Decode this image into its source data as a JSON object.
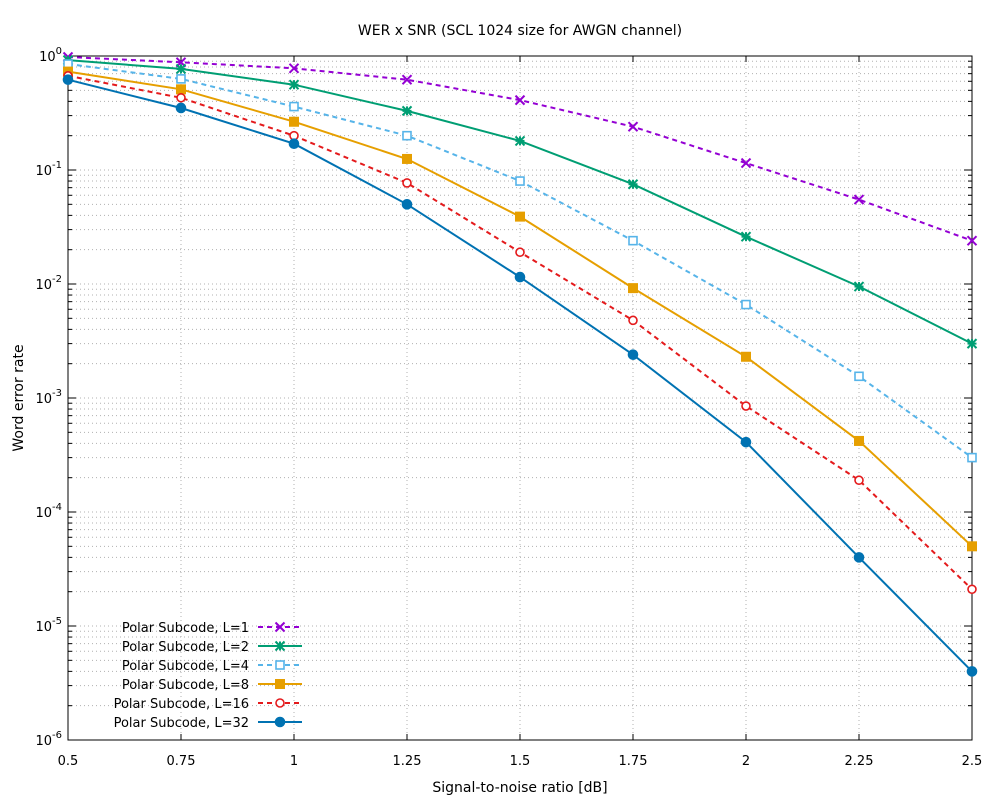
{
  "chart_data": {
    "type": "line",
    "title": "WER x SNR (SCL 1024 size for AWGN channel)",
    "xlabel": "Signal-to-noise ratio [dB]",
    "ylabel": "Word error rate",
    "y_scale": "log",
    "xlim": [
      0.5,
      2.5
    ],
    "ylim": [
      1e-06,
      1
    ],
    "grid": true,
    "legend_position": "bottom-left",
    "x_ticks": [
      "0.5",
      "0.75",
      "1",
      "1.25",
      "1.5",
      "1.75",
      "2",
      "2.25",
      "2.5"
    ],
    "y_ticks": [
      {
        "base": "10",
        "exp": "0"
      },
      {
        "base": "10",
        "exp": "-1"
      },
      {
        "base": "10",
        "exp": "-2"
      },
      {
        "base": "10",
        "exp": "-3"
      },
      {
        "base": "10",
        "exp": "-4"
      },
      {
        "base": "10",
        "exp": "-5"
      },
      {
        "base": "10",
        "exp": "-6"
      }
    ],
    "x": [
      0.5,
      0.75,
      1,
      1.25,
      1.5,
      1.75,
      2,
      2.25,
      2.5
    ],
    "series": [
      {
        "name": "Polar Subcode, L=1",
        "color": "#9400d3",
        "dash": true,
        "marker": "x",
        "values": [
          0.98,
          0.88,
          0.78,
          0.62,
          0.41,
          0.24,
          0.115,
          0.055,
          0.024
        ]
      },
      {
        "name": "Polar Subcode, L=2",
        "color": "#009e73",
        "dash": false,
        "marker": "star",
        "values": [
          0.92,
          0.77,
          0.56,
          0.33,
          0.18,
          0.075,
          0.026,
          0.0095,
          0.003
        ]
      },
      {
        "name": "Polar Subcode, L=4",
        "color": "#56b4e9",
        "dash": true,
        "marker": "open-square",
        "values": [
          0.85,
          0.63,
          0.36,
          0.2,
          0.08,
          0.024,
          0.0066,
          0.00155,
          0.0003
        ]
      },
      {
        "name": "Polar Subcode, L=8",
        "color": "#e69f00",
        "dash": false,
        "marker": "filled-square",
        "values": [
          0.73,
          0.51,
          0.265,
          0.125,
          0.039,
          0.0092,
          0.0023,
          0.00042,
          5e-05
        ]
      },
      {
        "name": "Polar Subcode, L=16",
        "color": "#e41a1c",
        "dash": true,
        "marker": "open-circle",
        "values": [
          0.67,
          0.43,
          0.2,
          0.077,
          0.019,
          0.0048,
          0.00085,
          0.00019,
          2.1e-05
        ]
      },
      {
        "name": "Polar Subcode, L=32",
        "color": "#0072b2",
        "dash": false,
        "marker": "filled-circle",
        "values": [
          0.62,
          0.35,
          0.17,
          0.05,
          0.0115,
          0.0024,
          0.00041,
          4e-05,
          4e-06
        ]
      }
    ]
  }
}
